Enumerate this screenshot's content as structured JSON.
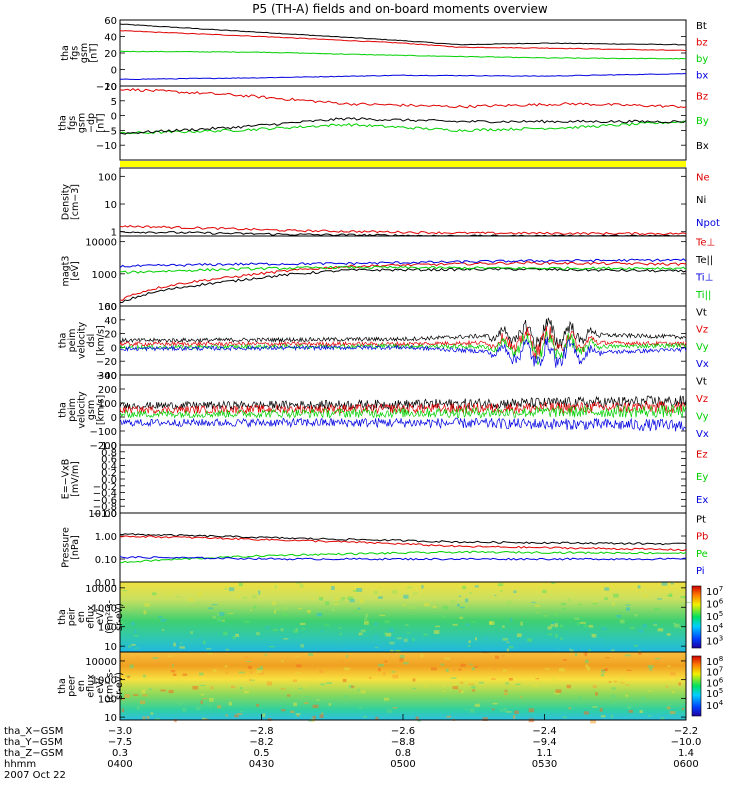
{
  "title": "P5 (TH-A) fields and on-board moments overview",
  "colors": {
    "black": "#000000",
    "red": "#e00000",
    "green": "#00d000",
    "blue": "#0000e0",
    "yellow": "#ffff00"
  },
  "panels": [
    {
      "id": "fgs-gsm",
      "ylabel": [
        "tha",
        "fgs",
        "gsm",
        "[nT]"
      ],
      "scale": "linear",
      "ylim": [
        -20,
        60
      ],
      "ticks": [
        {
          "v": 60,
          "t": "60"
        },
        {
          "v": 40,
          "t": "40"
        },
        {
          "v": 20,
          "t": "20"
        },
        {
          "v": 0,
          "t": "0"
        },
        {
          "v": -20,
          "t": "−20"
        }
      ],
      "legend": [
        {
          "t": "Bt",
          "c": "black"
        },
        {
          "t": "bz",
          "c": "red"
        },
        {
          "t": "by",
          "c": "green"
        },
        {
          "t": "bx",
          "c": "blue"
        }
      ]
    },
    {
      "id": "fgs-gsm-dp",
      "ylabel": [
        "tha",
        "fgs",
        "gsm",
        "−dp",
        "[nT]"
      ],
      "scale": "linear",
      "ylim": [
        -15,
        10
      ],
      "ticks": [
        {
          "v": 10,
          "t": "10"
        },
        {
          "v": 5,
          "t": "5"
        },
        {
          "v": 0,
          "t": "0"
        },
        {
          "v": -5,
          "t": "−5"
        },
        {
          "v": -10,
          "t": "−10"
        }
      ],
      "legend": [
        {
          "t": "Bz",
          "c": "red"
        },
        {
          "t": "By",
          "c": "green"
        },
        {
          "t": "Bx",
          "c": "black"
        }
      ]
    },
    {
      "id": "state-bar",
      "ylabel": [],
      "scale": "none",
      "ticks": [],
      "legend": []
    },
    {
      "id": "density",
      "ylabel": [
        "Density",
        "[cm−3]"
      ],
      "scale": "log",
      "ylim": [
        0.7,
        200
      ],
      "ticks": [
        {
          "v": 100,
          "t": "100"
        },
        {
          "v": 10,
          "t": "10"
        },
        {
          "v": 1,
          "t": "1"
        }
      ],
      "legend": [
        {
          "t": "Ne",
          "c": "red"
        },
        {
          "t": "Ni",
          "c": "black"
        },
        {
          "t": "Npot",
          "c": "blue"
        }
      ]
    },
    {
      "id": "temperature",
      "ylabel": [
        "magt3",
        "[eV]"
      ],
      "scale": "log",
      "ylim": [
        100,
        15000
      ],
      "ticks": [
        {
          "v": 10000,
          "t": "10000"
        },
        {
          "v": 1000,
          "t": "1000"
        },
        {
          "v": 100,
          "t": "100"
        }
      ],
      "legend": [
        {
          "t": "Te⊥",
          "c": "red"
        },
        {
          "t": "Te||",
          "c": "black"
        },
        {
          "t": "Ti⊥",
          "c": "blue"
        },
        {
          "t": "Ti||",
          "c": "green"
        }
      ]
    },
    {
      "id": "velocity-dsl",
      "ylabel": [
        "tha",
        "peim",
        "velocity",
        "dsl",
        "[km/s]"
      ],
      "scale": "linear",
      "ylim": [
        -40,
        60
      ],
      "ticks": [
        {
          "v": 60,
          "t": "60"
        },
        {
          "v": 40,
          "t": "40"
        },
        {
          "v": 20,
          "t": "20"
        },
        {
          "v": 0,
          "t": "0"
        },
        {
          "v": -20,
          "t": "−20"
        },
        {
          "v": -40,
          "t": "−40"
        }
      ],
      "legend": [
        {
          "t": "Vt",
          "c": "black"
        },
        {
          "t": "Vz",
          "c": "red"
        },
        {
          "t": "Vy",
          "c": "green"
        },
        {
          "t": "Vx",
          "c": "blue"
        }
      ]
    },
    {
      "id": "velocity-gsm",
      "ylabel": [
        "tha",
        "peim",
        "velocity",
        "gsm",
        "[km/s]"
      ],
      "scale": "linear",
      "ylim": [
        -200,
        300
      ],
      "ticks": [
        {
          "v": 300,
          "t": "300"
        },
        {
          "v": 200,
          "t": "200"
        },
        {
          "v": 100,
          "t": "100"
        },
        {
          "v": 0,
          "t": "0"
        },
        {
          "v": -100,
          "t": "−100"
        },
        {
          "v": -200,
          "t": "−200"
        }
      ],
      "legend": [
        {
          "t": "Vt",
          "c": "black"
        },
        {
          "t": "Vz",
          "c": "red"
        },
        {
          "t": "Vy",
          "c": "green"
        },
        {
          "t": "Vx",
          "c": "blue"
        }
      ]
    },
    {
      "id": "efield",
      "ylabel": [
        "E=−VxB",
        "[mV/m]"
      ],
      "scale": "linear",
      "ylim": [
        -1,
        1
      ],
      "ticks": [
        {
          "v": 1,
          "t": "1.0"
        },
        {
          "v": 0.8,
          "t": "0.8"
        },
        {
          "v": 0.6,
          "t": "0.6"
        },
        {
          "v": 0.4,
          "t": "0.4"
        },
        {
          "v": 0.2,
          "t": "0.2"
        },
        {
          "v": 0,
          "t": "0.0"
        },
        {
          "v": -0.2,
          "t": "−0.2"
        },
        {
          "v": -0.4,
          "t": "−0.4"
        },
        {
          "v": -0.6,
          "t": "−0.6"
        },
        {
          "v": -0.8,
          "t": "−0.8"
        },
        {
          "v": -1,
          "t": "−1.0"
        }
      ],
      "legend": [
        {
          "t": "Ez",
          "c": "red"
        },
        {
          "t": "Ey",
          "c": "green"
        },
        {
          "t": "Ex",
          "c": "blue"
        }
      ]
    },
    {
      "id": "pressure",
      "ylabel": [
        "Pressure",
        "[nPa]"
      ],
      "scale": "log",
      "ylim": [
        0.01,
        10
      ],
      "ticks": [
        {
          "v": 10,
          "t": "10.00"
        },
        {
          "v": 1,
          "t": "1.00"
        },
        {
          "v": 0.1,
          "t": "0.10"
        },
        {
          "v": 0.01,
          "t": "0.01"
        }
      ],
      "legend": [
        {
          "t": "Pt",
          "c": "black"
        },
        {
          "t": "Pb",
          "c": "red"
        },
        {
          "t": "Pe",
          "c": "green"
        },
        {
          "t": "Pi",
          "c": "blue"
        }
      ]
    },
    {
      "id": "ion-spec",
      "ylabel": [
        "tha",
        "peir",
        "en",
        "eflux",
        "eV/",
        "(cm²-s-",
        "sr-eV)"
      ],
      "scale": "log",
      "ylim": [
        5,
        20000
      ],
      "ticks": [
        {
          "v": 10000,
          "t": "10000"
        },
        {
          "v": 1000,
          "t": "1000"
        },
        {
          "v": 100,
          "t": "100"
        },
        {
          "v": 10,
          "t": "10"
        }
      ],
      "legend": [],
      "colorbar": {
        "ticks": [
          {
            "e": "7",
            "frac": 0.92
          },
          {
            "e": "6",
            "frac": 0.72
          },
          {
            "e": "5",
            "frac": 0.52
          },
          {
            "e": "4",
            "frac": 0.32
          },
          {
            "e": "3",
            "frac": 0.12
          }
        ]
      }
    },
    {
      "id": "elec-spec",
      "ylabel": [
        "tha",
        "peer",
        "en",
        "eflux",
        "eV/",
        "(cm²-s-",
        "sr-eV)"
      ],
      "scale": "log",
      "ylim": [
        7,
        30000
      ],
      "ticks": [
        {
          "v": 10000,
          "t": "10000"
        },
        {
          "v": 1000,
          "t": "1000"
        },
        {
          "v": 100,
          "t": "100"
        },
        {
          "v": 10,
          "t": "10"
        }
      ],
      "legend": [],
      "colorbar": {
        "ticks": [
          {
            "e": "8",
            "frac": 0.92
          },
          {
            "e": "7",
            "frac": 0.74
          },
          {
            "e": "6",
            "frac": 0.56
          },
          {
            "e": "5",
            "frac": 0.38
          },
          {
            "e": "4",
            "frac": 0.18
          }
        ]
      }
    }
  ],
  "xaxis": {
    "rows": [
      {
        "label": "tha_X−GSM",
        "vals": [
          "−3.0",
          "−2.8",
          "−2.6",
          "−2.4",
          "−2.2"
        ]
      },
      {
        "label": "tha_Y−GSM",
        "vals": [
          "−7.5",
          "−8.2",
          "−8.8",
          "−9.4",
          "−10.0"
        ]
      },
      {
        "label": "tha_Z−GSM",
        "vals": [
          "0.3",
          "0.5",
          "0.8",
          "1.1",
          "1.4"
        ]
      },
      {
        "label": "hhmm",
        "vals": [
          "0400",
          "0430",
          "0500",
          "0530",
          "0600"
        ]
      }
    ],
    "date": "2007 Oct 22"
  },
  "chart_data": {
    "type": "line",
    "time_range": [
      "0400",
      "0600"
    ],
    "date": "2007 Oct 22",
    "series": {
      "fgs-gsm": [
        {
          "name": "Bt",
          "color": "black",
          "x": [
            0,
            0.25,
            0.5,
            0.6,
            0.75,
            1
          ],
          "y": [
            55,
            45,
            35,
            30,
            32,
            30
          ]
        },
        {
          "name": "bz",
          "color": "red",
          "x": [
            0,
            0.25,
            0.5,
            0.6,
            0.75,
            1
          ],
          "y": [
            47,
            40,
            32,
            27,
            26,
            23
          ]
        },
        {
          "name": "by",
          "color": "green",
          "x": [
            0,
            0.25,
            0.5,
            0.75,
            1
          ],
          "y": [
            22,
            21,
            17,
            14,
            13
          ]
        },
        {
          "name": "bx",
          "color": "blue",
          "x": [
            0,
            0.25,
            0.5,
            0.75,
            1
          ],
          "y": [
            -12,
            -10,
            -7,
            -8,
            -5
          ]
        }
      ],
      "fgs-gsm-dp": [
        {
          "name": "Bz",
          "color": "red",
          "x": [
            0,
            0.2,
            0.4,
            0.6,
            0.8,
            1
          ],
          "y": [
            9,
            7,
            4,
            3,
            4,
            3
          ]
        },
        {
          "name": "By",
          "color": "green",
          "x": [
            0,
            0.2,
            0.4,
            0.6,
            0.8,
            1
          ],
          "y": [
            -6,
            -5,
            -3,
            -5,
            -4,
            -2
          ]
        },
        {
          "name": "Bx",
          "color": "black",
          "x": [
            0,
            0.2,
            0.4,
            0.6,
            0.8,
            1
          ],
          "y": [
            -6,
            -4,
            -1,
            -2,
            -2,
            -2
          ]
        }
      ],
      "density": [
        {
          "name": "Ne",
          "color": "red",
          "x": [
            0,
            0.3,
            0.6,
            1
          ],
          "y": [
            1.6,
            1.1,
            0.9,
            0.85
          ]
        },
        {
          "name": "Ni",
          "color": "black",
          "x": [
            0,
            0.3,
            0.6,
            1
          ],
          "y": [
            1.0,
            0.8,
            0.7,
            0.7
          ]
        }
      ],
      "temperature": [
        {
          "name": "Te⊥",
          "color": "red",
          "x": [
            0,
            0.2,
            0.4,
            0.7,
            1
          ],
          "y": [
            150,
            800,
            1700,
            2200,
            2000
          ]
        },
        {
          "name": "Te||",
          "color": "black",
          "x": [
            0,
            0.2,
            0.4,
            0.7,
            1
          ],
          "y": [
            120,
            600,
            1300,
            1400,
            1200
          ]
        },
        {
          "name": "Ti⊥",
          "color": "blue",
          "x": [
            0,
            0.2,
            0.4,
            0.7,
            1
          ],
          "y": [
            1700,
            2000,
            2100,
            2500,
            2700
          ]
        },
        {
          "name": "Ti||",
          "color": "green",
          "x": [
            0,
            0.2,
            0.4,
            0.7,
            1
          ],
          "y": [
            1100,
            1400,
            1600,
            1500,
            1500
          ]
        }
      ],
      "velocity-dsl": [
        {
          "name": "Vt",
          "color": "black",
          "x": [
            0,
            0.5,
            0.75,
            1
          ],
          "y": [
            10,
            12,
            20,
            15
          ]
        },
        {
          "name": "Vz",
          "color": "red",
          "x": [
            0,
            0.5,
            0.75,
            1
          ],
          "y": [
            5,
            5,
            8,
            5
          ]
        },
        {
          "name": "Vy",
          "color": "green",
          "x": [
            0,
            0.5,
            0.75,
            1
          ],
          "y": [
            0,
            2,
            0,
            3
          ]
        },
        {
          "name": "Vx",
          "color": "blue",
          "x": [
            0,
            0.5,
            0.75,
            1
          ],
          "y": [
            -2,
            0,
            -10,
            -3
          ]
        }
      ],
      "velocity-gsm": [
        {
          "name": "Vt",
          "color": "black",
          "x": [
            0,
            0.5,
            1
          ],
          "y": [
            80,
            90,
            110
          ]
        },
        {
          "name": "Vz",
          "color": "red",
          "x": [
            0,
            0.5,
            1
          ],
          "y": [
            50,
            60,
            70
          ]
        },
        {
          "name": "Vy",
          "color": "green",
          "x": [
            0,
            0.5,
            1
          ],
          "y": [
            20,
            30,
            40
          ]
        },
        {
          "name": "Vx",
          "color": "blue",
          "x": [
            0,
            0.5,
            1
          ],
          "y": [
            -40,
            -40,
            -60
          ]
        }
      ],
      "pressure": [
        {
          "name": "Pt",
          "color": "black",
          "x": [
            0,
            0.3,
            0.6,
            1
          ],
          "y": [
            1.2,
            0.8,
            0.55,
            0.45
          ]
        },
        {
          "name": "Pb",
          "color": "red",
          "x": [
            0,
            0.3,
            0.6,
            1
          ],
          "y": [
            1.0,
            0.65,
            0.35,
            0.25
          ]
        },
        {
          "name": "Pe",
          "color": "green",
          "x": [
            0,
            0.3,
            0.6,
            1
          ],
          "y": [
            0.07,
            0.15,
            0.2,
            0.18
          ]
        },
        {
          "name": "Pi",
          "color": "blue",
          "x": [
            0,
            0.3,
            0.6,
            1
          ],
          "y": [
            0.12,
            0.1,
            0.1,
            0.1
          ]
        }
      ]
    }
  }
}
